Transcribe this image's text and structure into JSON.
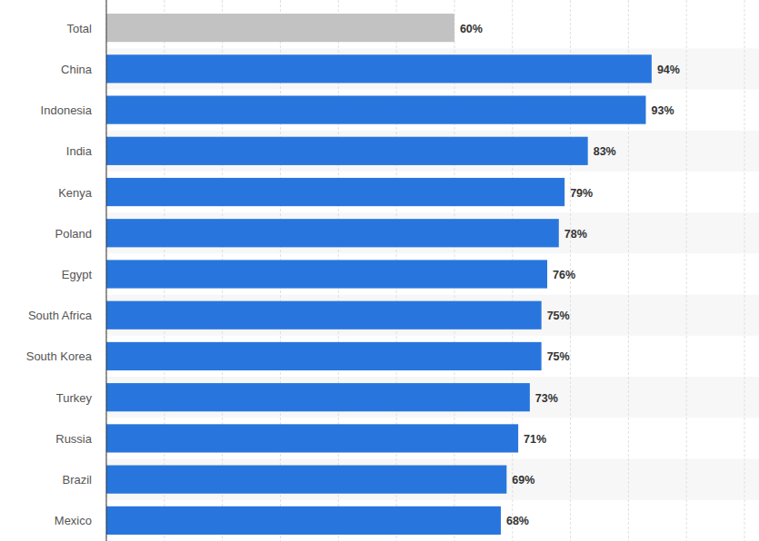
{
  "chart_data": {
    "type": "bar",
    "orientation": "horizontal",
    "categories": [
      "Total",
      "China",
      "Indonesia",
      "India",
      "Kenya",
      "Poland",
      "Egypt",
      "South Africa",
      "South Korea",
      "Turkey",
      "Russia",
      "Brazil",
      "Mexico"
    ],
    "values": [
      60,
      94,
      93,
      83,
      79,
      78,
      76,
      75,
      75,
      73,
      71,
      69,
      68
    ],
    "value_labels": [
      "60%",
      "94%",
      "93%",
      "83%",
      "79%",
      "78%",
      "76%",
      "75%",
      "75%",
      "73%",
      "71%",
      "69%",
      "68%"
    ],
    "colors": [
      "#c2c2c2",
      "#2876dd",
      "#2876dd",
      "#2876dd",
      "#2876dd",
      "#2876dd",
      "#2876dd",
      "#2876dd",
      "#2876dd",
      "#2876dd",
      "#2876dd",
      "#2876dd",
      "#2876dd"
    ],
    "xlim": [
      0,
      110
    ],
    "xticks": [
      0,
      10,
      20,
      30,
      40,
      50,
      60,
      70,
      80,
      90,
      100,
      110
    ],
    "grid": true,
    "data_labels": true,
    "tick_labels": "y"
  }
}
